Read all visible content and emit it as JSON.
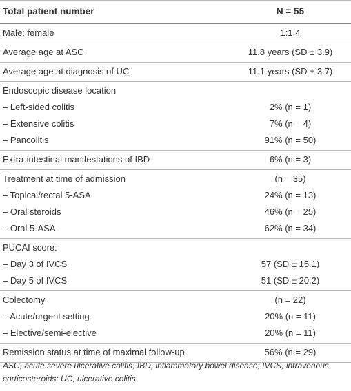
{
  "table": {
    "header": [
      "Total patient number",
      "N = 55"
    ],
    "groups": [
      {
        "rows": [
          [
            "Male: female",
            "1:1.4"
          ]
        ]
      },
      {
        "rows": [
          [
            "Average age at ASC",
            "11.8 years (SD ± 3.9)"
          ]
        ]
      },
      {
        "rows": [
          [
            "Average age at diagnosis of UC",
            "11.1 years (SD ± 3.7)"
          ]
        ]
      },
      {
        "rows": [
          [
            "Endoscopic disease location",
            ""
          ],
          [
            "– Left-sided colitis",
            "2% (n = 1)"
          ],
          [
            "– Extensive colitis",
            "7% (n = 4)"
          ],
          [
            "– Pancolitis",
            "91% (n = 50)"
          ]
        ]
      },
      {
        "rows": [
          [
            "Extra-intestinal manifestations of IBD",
            "6% (n = 3)"
          ]
        ]
      },
      {
        "rows": [
          [
            "Treatment at time of admission",
            "(n = 35)"
          ],
          [
            "– Topical/rectal 5-ASA",
            "24% (n = 13)"
          ],
          [
            "– Oral steroids",
            "46% (n = 25)"
          ],
          [
            "– Oral 5-ASA",
            "62% (n = 34)"
          ]
        ]
      },
      {
        "rows": [
          [
            "PUCAI score:",
            ""
          ],
          [
            "– Day 3 of IVCS",
            "57 (SD ± 15.1)"
          ],
          [
            "– Day 5 of IVCS",
            "51 (SD ± 20.2)"
          ]
        ]
      },
      {
        "rows": [
          [
            "Colectomy",
            "(n = 22)"
          ],
          [
            "– Acute/urgent setting",
            "20% (n = 11)"
          ],
          [
            "– Elective/semi-elective",
            "20% (n = 11)"
          ]
        ]
      },
      {
        "rows": [
          [
            "Remission status at time of maximal follow-up",
            "56% (n = 29)"
          ]
        ]
      }
    ]
  },
  "footnote": "ASC, acute severe ulcerative colitis; IBD, inflammatory bowel disease; IVCS, intravenous corticosteroids; UC, ulcerative colitis."
}
